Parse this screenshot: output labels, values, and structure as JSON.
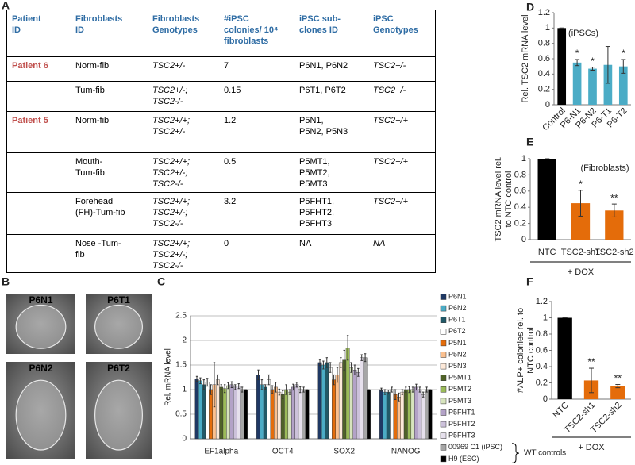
{
  "table": {
    "panel": "A",
    "header": [
      "Patient\nID",
      "Fibroblasts\nID",
      "Fibroblasts\nGenotypes",
      "#iPSC\ncolonies/ 10⁴\nfibroblasts",
      "iPSC sub-\nclones ID",
      "iPSC\nGenotypes"
    ],
    "rows": [
      [
        "Patient 6",
        "Norm-fib",
        "TSC2+/-",
        7,
        "P6N1, P6N2",
        "TSC2+/-"
      ],
      [
        null,
        "Tum-fib",
        "TSC2+/-;\nTSC2-/-",
        0.15,
        "P6T1, P6T2",
        "TSC2+/-"
      ],
      [
        "Patient 5",
        "Norm-fib",
        "TSC2+/+;\nTSC2+/-",
        1.2,
        "P5N1,\nP5N2, P5N3",
        "TSC2+/+"
      ],
      [
        null,
        "Mouth-\nTum-fib",
        "TSC2+/+;\nTSC2+/-;\nTSC2-/-",
        0.5,
        "P5MT1,\nP5MT2,\nP5MT3",
        "TSC2+/+"
      ],
      [
        null,
        "Forehead\n(FH)-Tum-fib",
        "TSC2+/+;\nTSC2+/-;\nTSC2-/-",
        3.2,
        "P5FHT1,\nP5FHT2,\nP5FHT3",
        "TSC2+/+"
      ],
      [
        null,
        "Nose -Tum-\nfib",
        "TSC2+/+;\nTSC2+/-;\nTSC2-/-",
        0,
        "NA",
        "NA"
      ]
    ]
  },
  "images": {
    "panel": "B",
    "labels": [
      "P6N1",
      "P6T1",
      "P6N2",
      "P6T2"
    ]
  },
  "chart_data": [
    {
      "type": "bar",
      "panel": "C",
      "y_label": "Rel. mRNA level",
      "categories": [
        "EF1alpha",
        "OCT4",
        "SOX2",
        "NANOG"
      ],
      "ylim": [
        0,
        2.5
      ],
      "yticks": [
        0,
        0.5,
        1,
        1.5,
        2,
        2.5
      ],
      "grid": true,
      "series": [
        {
          "name": "P6N1",
          "color": "#1f3864",
          "values": [
            1.22,
            1.3,
            1.55,
            1.0
          ],
          "errors": [
            0.05,
            0.1,
            0.06,
            0.03
          ]
        },
        {
          "name": "P6N2",
          "color": "#4bacc6",
          "values": [
            1.18,
            1.1,
            1.5,
            0.95
          ],
          "errors": [
            0.06,
            0.1,
            0.08,
            0.05
          ]
        },
        {
          "name": "P6T1",
          "color": "#215968",
          "values": [
            1.1,
            1.05,
            1.55,
            0.95
          ],
          "errors": [
            0.1,
            0.05,
            0.1,
            0.04
          ]
        },
        {
          "name": "P6T2",
          "color": "#ffffff",
          "values": [
            1.15,
            1.2,
            1.45,
            1.0
          ],
          "errors": [
            0.08,
            0.1,
            0.1,
            0.05
          ]
        },
        {
          "name": "P5N1",
          "color": "#e46c0a",
          "values": [
            1.0,
            1.0,
            1.2,
            0.9
          ],
          "errors": [
            0.1,
            0.08,
            0.1,
            0.1
          ]
        },
        {
          "name": "P5N2",
          "color": "#fac090",
          "values": [
            1.1,
            1.05,
            1.3,
            0.85
          ],
          "errors": [
            0.45,
            0.1,
            0.15,
            0.08
          ]
        },
        {
          "name": "P5N3",
          "color": "#fde9d9",
          "values": [
            1.2,
            0.95,
            1.55,
            0.95
          ],
          "errors": [
            0.1,
            0.06,
            0.1,
            0.05
          ]
        },
        {
          "name": "P5MT1",
          "color": "#4f6228",
          "values": [
            1.05,
            0.9,
            1.6,
            1.0
          ],
          "errors": [
            0.05,
            0.08,
            0.2,
            0.05
          ]
        },
        {
          "name": "P5MT2",
          "color": "#9bbb59",
          "values": [
            1.02,
            1.0,
            1.85,
            1.0
          ],
          "errors": [
            0.08,
            0.1,
            0.25,
            0.06
          ]
        },
        {
          "name": "P5MT3",
          "color": "#d7e4bd",
          "values": [
            1.08,
            0.95,
            1.45,
            1.0
          ],
          "errors": [
            0.06,
            0.05,
            0.1,
            0.05
          ]
        },
        {
          "name": "P5FHT1",
          "color": "#b3a2c7",
          "values": [
            1.1,
            1.05,
            1.4,
            1.05
          ],
          "errors": [
            0.06,
            0.06,
            0.1,
            0.06
          ]
        },
        {
          "name": "P5FHT2",
          "color": "#ccc1da",
          "values": [
            1.05,
            1.1,
            1.35,
            1.0
          ],
          "errors": [
            0.05,
            0.05,
            0.08,
            0.05
          ]
        },
        {
          "name": "P5FHT3",
          "color": "#e6e0ec",
          "values": [
            1.07,
            1.0,
            1.65,
            0.9
          ],
          "errors": [
            0.05,
            0.06,
            0.06,
            0.05
          ]
        },
        {
          "name": "00969 C1 (iPSC)",
          "color": "#a6a6a6",
          "values": [
            1.0,
            1.0,
            1.65,
            1.0
          ],
          "errors": [
            0.05,
            0.05,
            0.08,
            0.05
          ]
        },
        {
          "name": "H9 (ESC)",
          "color": "#000000",
          "values": [
            1.0,
            1.0,
            1.0,
            1.0
          ],
          "errors": [
            0,
            0,
            0,
            0
          ]
        }
      ],
      "legend_note": "WT controls"
    },
    {
      "type": "bar",
      "panel": "D",
      "y_label": "Rel. TSC2 mRNA level",
      "note": "(iPSCs)",
      "categories": [
        "Control",
        "P6-N1",
        "P6-N2",
        "P6-T1",
        "P6-T2"
      ],
      "values": [
        1,
        0.55,
        0.47,
        0.52,
        0.5
      ],
      "errors": [
        0,
        0.04,
        0.02,
        0.24,
        0.09
      ],
      "colors": [
        "#000000",
        "#4bacc6",
        "#4bacc6",
        "#4bacc6",
        "#4bacc6"
      ],
      "annotations": [
        null,
        "*",
        "*",
        null,
        "*"
      ],
      "ylim": [
        0,
        1.2
      ],
      "yticks": [
        0,
        0.2,
        0.4,
        0.6,
        0.8,
        1,
        1.2
      ],
      "grid": false,
      "rotate_labels": true
    },
    {
      "type": "bar",
      "panel": "E",
      "y_label": [
        "TSC2 mRNA level rel.",
        "to NTC control"
      ],
      "note": "(Fibroblasts)",
      "categories": [
        "NTC",
        "TSC2-sh1",
        "TSC2-sh2"
      ],
      "values": [
        1,
        0.45,
        0.36
      ],
      "errors": [
        0,
        0.16,
        0.08
      ],
      "colors": [
        "#000000",
        "#e46c0a",
        "#e46c0a"
      ],
      "annotations": [
        null,
        "*",
        "**"
      ],
      "group_label": "+ DOX",
      "ylim": [
        0,
        1
      ],
      "yticks": [
        0,
        0.2,
        0.4,
        0.6,
        0.8,
        1
      ],
      "grid": false,
      "rotate_labels": false
    },
    {
      "type": "bar",
      "panel": "F",
      "y_label": [
        "#ALP+ colonies rel. to",
        "NTC control"
      ],
      "categories": [
        "NTC",
        "TSC2-sh1",
        "TSC2-sh2"
      ],
      "values": [
        1,
        0.23,
        0.16
      ],
      "errors": [
        0,
        0.15,
        0.02
      ],
      "colors": [
        "#000000",
        "#e46c0a",
        "#e46c0a"
      ],
      "annotations": [
        null,
        "**",
        "**"
      ],
      "group_label": "+ DOX",
      "ylim": [
        0,
        1.2
      ],
      "yticks": [
        0,
        0.2,
        0.4,
        0.6,
        0.8,
        1,
        1.2
      ],
      "grid": false,
      "rotate_labels": true
    }
  ]
}
